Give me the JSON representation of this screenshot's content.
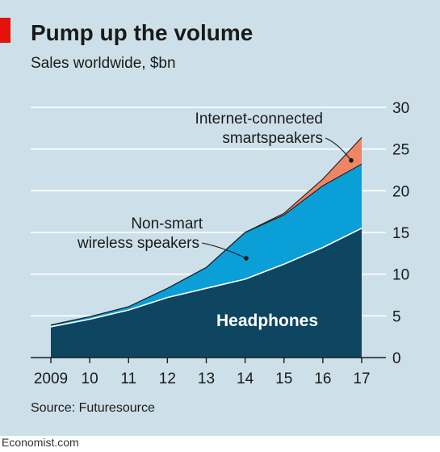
{
  "header": {
    "title": "Pump up the volume",
    "subtitle": "Sales worldwide, $bn"
  },
  "footer": {
    "source": "Source: Futuresource",
    "brand": "Economist.com"
  },
  "colors": {
    "background": "#cde0e9",
    "accent_tag": "#e3120b",
    "gridline": "#ffffff",
    "axis": "#1a1a1a",
    "headphones": "#0e4560",
    "wireless": "#0b9fd8",
    "smartspeakers": "#f08565",
    "series_divider": "#ffffff",
    "callout_dot": "#1a1a1a"
  },
  "chart_data": {
    "type": "area",
    "stacked": true,
    "title": "Pump up the volume",
    "subtitle": "Sales worldwide, $bn",
    "xlabel": "",
    "ylabel": "",
    "x": [
      2009,
      2010,
      2011,
      2012,
      2013,
      2014,
      2015,
      2016,
      2017
    ],
    "x_tick_labels": [
      "2009",
      "10",
      "11",
      "12",
      "13",
      "14",
      "15",
      "16",
      "17"
    ],
    "y_ticks": [
      0,
      5,
      10,
      15,
      20,
      25,
      30
    ],
    "ylim": [
      0,
      30
    ],
    "y_axis_side": "right",
    "grid": true,
    "series": [
      {
        "name": "Headphones",
        "values": [
          3.7,
          4.6,
          5.7,
          7.2,
          8.3,
          9.4,
          11.2,
          13.2,
          15.5
        ]
      },
      {
        "name": "Non-smart wireless speakers",
        "values": [
          0.2,
          0.3,
          0.4,
          1.1,
          2.5,
          5.6,
          5.9,
          7.4,
          7.7
        ]
      },
      {
        "name": "Internet-connected smartspeakers",
        "values": [
          0,
          0,
          0,
          0,
          0,
          0,
          0.2,
          0.8,
          3.2
        ]
      }
    ],
    "annotations": {
      "smartspeakers": {
        "lines": [
          "Internet-connected",
          "smartspeakers"
        ]
      },
      "wireless": {
        "lines": [
          "Non-smart",
          "wireless speakers"
        ]
      },
      "headphones": {
        "text": "Headphones"
      }
    }
  }
}
